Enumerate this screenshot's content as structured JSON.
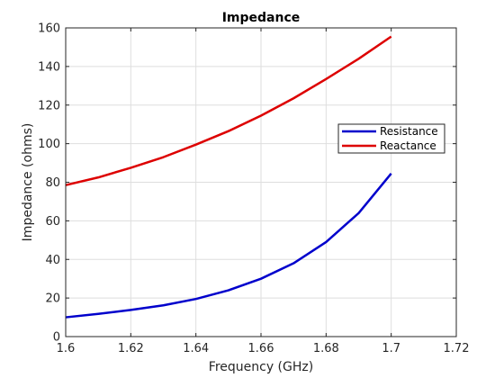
{
  "chart_data": {
    "type": "line",
    "title": "Impedance",
    "xlabel": "Frequency (GHz)",
    "ylabel": "Impedance (ohms)",
    "xlim": [
      1.6,
      1.72
    ],
    "ylim": [
      0,
      160
    ],
    "xticks": [
      1.6,
      1.62,
      1.64,
      1.66,
      1.68,
      1.7,
      1.72
    ],
    "xtick_labels": [
      "1.6",
      "1.62",
      "1.64",
      "1.66",
      "1.68",
      "1.7",
      "1.72"
    ],
    "yticks": [
      0,
      20,
      40,
      60,
      80,
      100,
      120,
      140,
      160
    ],
    "ytick_labels": [
      "0",
      "20",
      "40",
      "60",
      "80",
      "100",
      "120",
      "140",
      "160"
    ],
    "grid": true,
    "legend_position": "right",
    "x": [
      1.6,
      1.61,
      1.62,
      1.63,
      1.64,
      1.65,
      1.66,
      1.67,
      1.68,
      1.69,
      1.7
    ],
    "series": [
      {
        "name": "Resistance",
        "color": "#0000cc",
        "values": [
          10,
          11.8,
          13.8,
          16.2,
          19.5,
          24,
          30,
          38,
          49,
          64,
          84.5
        ]
      },
      {
        "name": "Reactance",
        "color": "#dd0000",
        "values": [
          78.5,
          82.5,
          87.5,
          93,
          99.5,
          106.5,
          114.5,
          123.5,
          133.5,
          144,
          155.5
        ]
      }
    ]
  }
}
